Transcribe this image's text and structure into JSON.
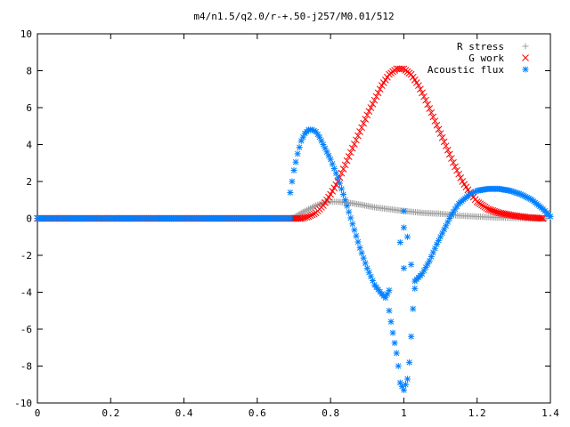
{
  "chart_data": {
    "type": "scatter",
    "title": "m4/n1.5/q2.0/r-+.50-j257/M0.01/512",
    "xlabel": "",
    "ylabel": "",
    "xlim": [
      0,
      1.4
    ],
    "ylim": [
      -10,
      10
    ],
    "xticks": [
      "0",
      "0.2",
      "0.4",
      "0.6",
      "0.8",
      "1",
      "1.2",
      "1.4"
    ],
    "yticks": [
      "-10",
      "-8",
      "-6",
      "-4",
      "-2",
      "0",
      "2",
      "4",
      "6",
      "8",
      "10"
    ],
    "grid": false,
    "legend": "top-right",
    "series": [
      {
        "name": "R stress",
        "marker": "+",
        "color": "#a0a0a0",
        "points": [
          [
            0.0,
            0
          ],
          [
            0.1,
            0
          ],
          [
            0.2,
            0
          ],
          [
            0.3,
            0
          ],
          [
            0.4,
            0
          ],
          [
            0.5,
            0
          ],
          [
            0.6,
            0
          ],
          [
            0.69,
            0
          ],
          [
            0.7,
            0.05
          ],
          [
            0.72,
            0.3
          ],
          [
            0.74,
            0.5
          ],
          [
            0.76,
            0.7
          ],
          [
            0.78,
            0.85
          ],
          [
            0.8,
            0.9
          ],
          [
            0.82,
            0.9
          ],
          [
            0.85,
            0.85
          ],
          [
            0.88,
            0.75
          ],
          [
            0.92,
            0.6
          ],
          [
            0.96,
            0.5
          ],
          [
            1.0,
            0.4
          ],
          [
            1.05,
            0.3
          ],
          [
            1.1,
            0.25
          ],
          [
            1.15,
            0.15
          ],
          [
            1.2,
            0.1
          ],
          [
            1.25,
            0.05
          ],
          [
            1.3,
            0.02
          ],
          [
            1.35,
            0.0
          ],
          [
            1.39,
            0.0
          ]
        ]
      },
      {
        "name": "G work",
        "marker": "x",
        "color": "#ff0000",
        "points": [
          [
            0.0,
            0
          ],
          [
            0.1,
            0
          ],
          [
            0.2,
            0
          ],
          [
            0.3,
            0
          ],
          [
            0.4,
            0
          ],
          [
            0.5,
            0
          ],
          [
            0.6,
            0
          ],
          [
            0.69,
            0
          ],
          [
            0.72,
            0.0
          ],
          [
            0.74,
            0.1
          ],
          [
            0.76,
            0.3
          ],
          [
            0.78,
            0.7
          ],
          [
            0.8,
            1.3
          ],
          [
            0.82,
            2.0
          ],
          [
            0.84,
            2.9
          ],
          [
            0.86,
            3.8
          ],
          [
            0.88,
            4.7
          ],
          [
            0.9,
            5.6
          ],
          [
            0.92,
            6.4
          ],
          [
            0.94,
            7.2
          ],
          [
            0.96,
            7.8
          ],
          [
            0.98,
            8.1
          ],
          [
            1.0,
            8.1
          ],
          [
            1.02,
            7.8
          ],
          [
            1.04,
            7.2
          ],
          [
            1.06,
            6.4
          ],
          [
            1.08,
            5.5
          ],
          [
            1.1,
            4.6
          ],
          [
            1.12,
            3.7
          ],
          [
            1.14,
            2.8
          ],
          [
            1.16,
            2.0
          ],
          [
            1.18,
            1.4
          ],
          [
            1.2,
            0.9
          ],
          [
            1.23,
            0.5
          ],
          [
            1.26,
            0.3
          ],
          [
            1.3,
            0.15
          ],
          [
            1.34,
            0.05
          ],
          [
            1.38,
            0.0
          ]
        ]
      },
      {
        "name": "Acoustic flux",
        "marker": "*",
        "color": "#0080ff",
        "points": [
          [
            0.0,
            0
          ],
          [
            0.1,
            0
          ],
          [
            0.2,
            0
          ],
          [
            0.3,
            0
          ],
          [
            0.4,
            0
          ],
          [
            0.5,
            0
          ],
          [
            0.6,
            0
          ],
          [
            0.69,
            0
          ],
          [
            0.69,
            1.4
          ],
          [
            0.7,
            2.6
          ],
          [
            0.71,
            3.5
          ],
          [
            0.72,
            4.2
          ],
          [
            0.73,
            4.6
          ],
          [
            0.74,
            4.8
          ],
          [
            0.75,
            4.8
          ],
          [
            0.76,
            4.7
          ],
          [
            0.77,
            4.4
          ],
          [
            0.78,
            4.0
          ],
          [
            0.8,
            3.2
          ],
          [
            0.82,
            2.2
          ],
          [
            0.84,
            1.0
          ],
          [
            0.86,
            -0.3
          ],
          [
            0.88,
            -1.6
          ],
          [
            0.9,
            -2.7
          ],
          [
            0.92,
            -3.6
          ],
          [
            0.94,
            -4.1
          ],
          [
            0.95,
            -4.3
          ],
          [
            0.96,
            -3.9
          ],
          [
            0.96,
            -5.0
          ],
          [
            0.97,
            -6.2
          ],
          [
            0.98,
            -7.3
          ],
          [
            0.985,
            -8.0
          ],
          [
            0.99,
            -8.9
          ],
          [
            1.0,
            -9.3
          ],
          [
            1.01,
            -8.7
          ],
          [
            1.015,
            -7.8
          ],
          [
            1.02,
            -6.4
          ],
          [
            1.025,
            -4.9
          ],
          [
            1.03,
            -3.8
          ],
          [
            1.03,
            -3.4
          ],
          [
            1.05,
            -3.0
          ],
          [
            1.07,
            -2.3
          ],
          [
            1.09,
            -1.4
          ],
          [
            1.11,
            -0.6
          ],
          [
            1.13,
            0.2
          ],
          [
            1.15,
            0.8
          ],
          [
            1.18,
            1.3
          ],
          [
            1.2,
            1.5
          ],
          [
            1.23,
            1.6
          ],
          [
            1.26,
            1.6
          ],
          [
            1.29,
            1.5
          ],
          [
            1.32,
            1.3
          ],
          [
            1.35,
            1.0
          ],
          [
            1.38,
            0.5
          ],
          [
            1.4,
            0.1
          ],
          [
            1.0,
            0.4
          ],
          [
            1.0,
            -0.5
          ],
          [
            0.99,
            -1.3
          ],
          [
            1.01,
            -1.0
          ],
          [
            1.0,
            -2.7
          ],
          [
            1.02,
            -2.5
          ]
        ]
      }
    ]
  }
}
